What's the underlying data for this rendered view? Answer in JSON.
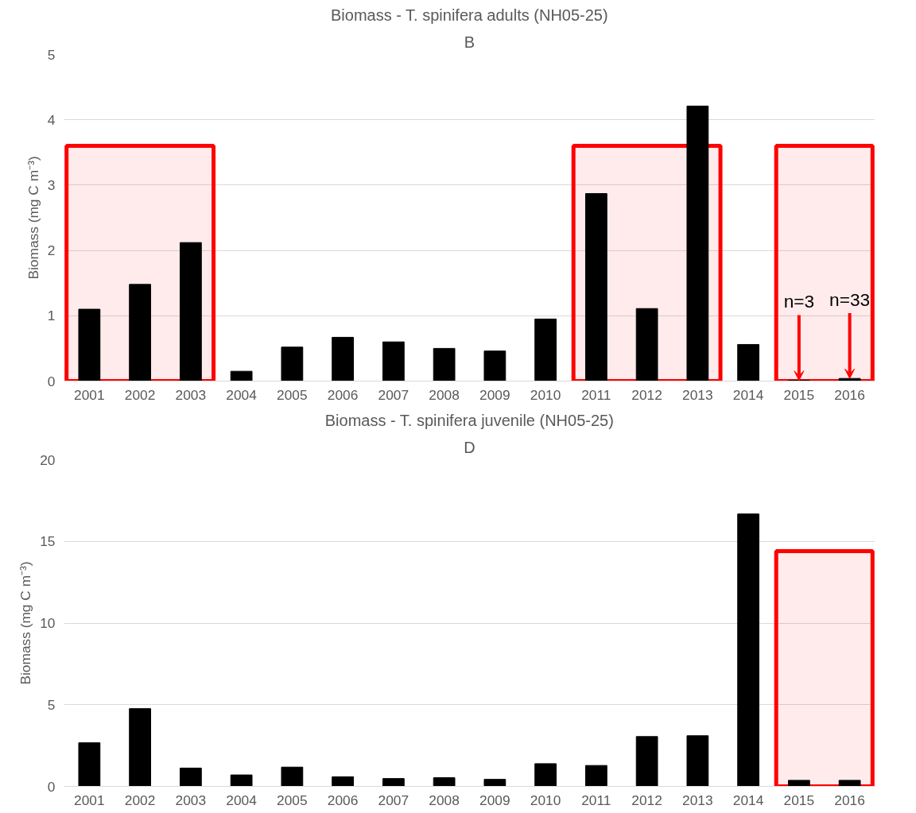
{
  "chart_data": [
    {
      "type": "bar",
      "title": "Biomass - T. spinifera adults (NH05-25)",
      "ylabel": "Biomass (mg C m⁻³)",
      "categories": [
        "2001",
        "2002",
        "2003",
        "2004",
        "2005",
        "2006",
        "2007",
        "2008",
        "2009",
        "2010",
        "2011",
        "2012",
        "2013",
        "2014",
        "2015",
        "2016"
      ],
      "series": [
        {
          "color": "#000000",
          "values": [
            1.1,
            1.48,
            2.12,
            0.15,
            0.52,
            0.67,
            0.6,
            0.5,
            0.46,
            0.95,
            2.87,
            1.11,
            4.21,
            0.56,
            0.01,
            0.04
          ]
        }
      ],
      "ylim": [
        0,
        5
      ],
      "yticks": [
        0,
        1,
        2,
        3,
        4,
        5
      ],
      "grid": "y",
      "bands": [
        {
          "axis": "x",
          "from": "2001",
          "to": "2003",
          "color": "#ff0000"
        },
        {
          "axis": "x",
          "from": "2011",
          "to": "2013",
          "color": "#ff0000"
        },
        {
          "axis": "x",
          "from": "2015",
          "to": "2016",
          "color": "#ff0000"
        }
      ],
      "annotations": [
        "B",
        {
          "text": "n=3",
          "x": "2015",
          "y": 0.01
        },
        {
          "text": "n=33",
          "x": "2016",
          "y": 0.04
        }
      ]
    },
    {
      "type": "bar",
      "title": "Biomass - T. spinifera juvenile (NH05-25)",
      "ylabel": "Biomass (mg C m⁻³)",
      "categories": [
        "2001",
        "2002",
        "2003",
        "2004",
        "2005",
        "2006",
        "2007",
        "2008",
        "2009",
        "2010",
        "2011",
        "2012",
        "2013",
        "2014",
        "2015",
        "2016"
      ],
      "series": [
        {
          "color": "#000000",
          "values": [
            2.67,
            4.76,
            1.12,
            0.7,
            1.18,
            0.59,
            0.48,
            0.53,
            0.43,
            1.39,
            1.28,
            3.05,
            3.1,
            16.68,
            0.37,
            0.37
          ]
        }
      ],
      "ylim": [
        0,
        20
      ],
      "yticks": [
        0,
        5,
        10,
        15,
        20
      ],
      "grid": "y",
      "bands": [
        {
          "axis": "x",
          "from": "2015",
          "to": "2016",
          "color": "#ff0000"
        }
      ],
      "annotations": [
        "D"
      ]
    }
  ]
}
